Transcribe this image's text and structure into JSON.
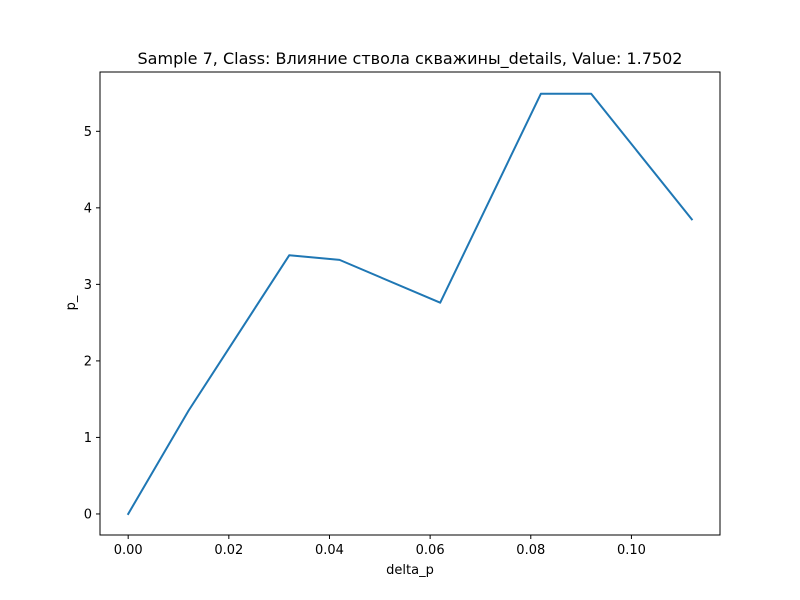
{
  "chart_data": {
    "type": "line",
    "title": "Sample 7, Class: Влияние ствола скважины_details, Value: 1.7502",
    "xlabel": "delta_p",
    "ylabel": "p_",
    "xlim": [
      -0.0056,
      0.1176
    ],
    "ylim": [
      -0.275,
      5.775
    ],
    "xticks": [
      0.0,
      0.02,
      0.04,
      0.06,
      0.08,
      0.1
    ],
    "xtick_labels": [
      "0.00",
      "0.02",
      "0.04",
      "0.06",
      "0.08",
      "0.10"
    ],
    "yticks": [
      0,
      1,
      2,
      3,
      4,
      5
    ],
    "ytick_labels": [
      "0",
      "1",
      "2",
      "3",
      "4",
      "5"
    ],
    "grid": false,
    "legend": "none",
    "series": [
      {
        "color": "#1f77b4",
        "x": [
          0.0,
          0.012,
          0.032,
          0.042,
          0.062,
          0.082,
          0.092,
          0.112
        ],
        "y": [
          0.0,
          1.35,
          3.38,
          3.32,
          2.76,
          5.49,
          5.49,
          3.85
        ]
      }
    ]
  }
}
